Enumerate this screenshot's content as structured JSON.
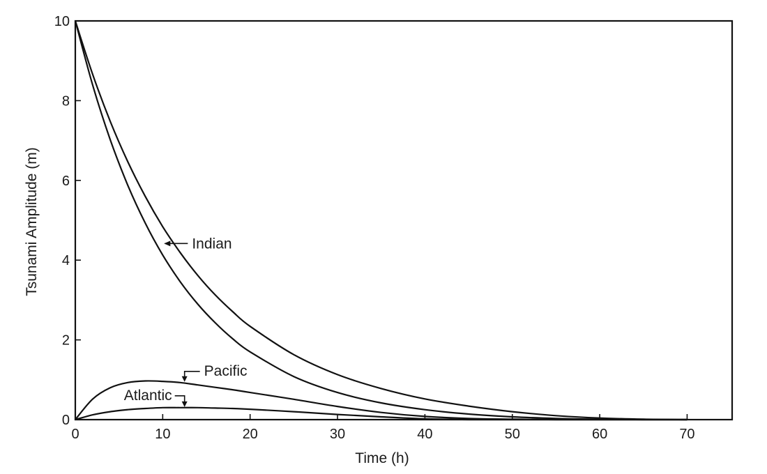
{
  "chart_data": {
    "type": "line",
    "title": "",
    "xlabel": "Time (h)",
    "ylabel": "Tsunami Amplitude (m)",
    "xlim": [
      0,
      75
    ],
    "ylim": [
      0,
      10
    ],
    "x_ticks": [
      0,
      10,
      20,
      30,
      40,
      50,
      60,
      70
    ],
    "y_ticks": [
      0,
      2,
      4,
      6,
      8,
      10
    ],
    "grid": false,
    "legend": "none",
    "x": [
      0,
      2,
      4,
      6,
      8,
      10,
      12,
      14,
      16,
      18,
      20,
      25,
      30,
      35,
      40,
      45,
      50,
      55,
      60,
      65,
      70
    ],
    "series": [
      {
        "values": [
          10.0,
          8.65,
          7.48,
          6.47,
          5.6,
          4.84,
          4.19,
          3.62,
          3.13,
          2.71,
          2.34,
          1.63,
          1.13,
          0.78,
          0.52,
          0.34,
          0.2,
          0.1,
          0.04,
          0.01,
          0.0
        ]
      },
      {
        "values": [
          10.0,
          8.38,
          7.02,
          5.88,
          4.93,
          4.13,
          3.46,
          2.9,
          2.43,
          2.03,
          1.7,
          1.08,
          0.68,
          0.42,
          0.25,
          0.14,
          0.07,
          0.03,
          0.01,
          0.0,
          0.0
        ]
      },
      {
        "values": [
          0.0,
          0.52,
          0.8,
          0.93,
          0.97,
          0.96,
          0.93,
          0.87,
          0.81,
          0.75,
          0.68,
          0.51,
          0.33,
          0.18,
          0.08,
          0.03,
          0.01,
          0.0,
          0.0,
          0.0,
          0.0
        ]
      },
      {
        "values": [
          0.0,
          0.12,
          0.2,
          0.25,
          0.28,
          0.3,
          0.3,
          0.3,
          0.29,
          0.28,
          0.26,
          0.2,
          0.13,
          0.07,
          0.02,
          0.0,
          0.0,
          0.0,
          0.0,
          0.0,
          0.0
        ]
      }
    ],
    "annotations": [
      {
        "text": "Indian",
        "target": {
          "x": 10,
          "y": 4.4
        }
      },
      {
        "text": "Pacific",
        "target": {
          "x": 12.5,
          "y": 0.93
        }
      },
      {
        "text": "Atlantic",
        "target": {
          "x": 12.5,
          "y": 0.3
        }
      }
    ]
  }
}
